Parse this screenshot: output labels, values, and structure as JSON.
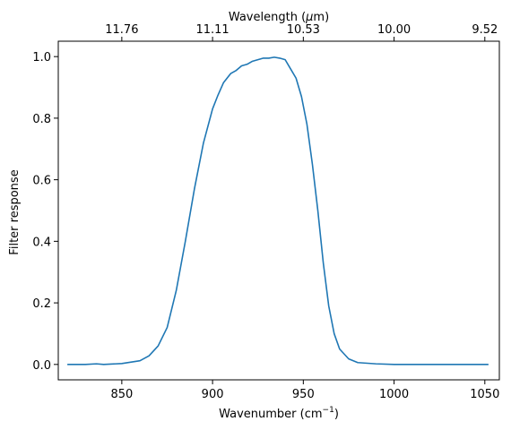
{
  "chart_data": {
    "type": "line",
    "xlabel": "Wavenumber (cm",
    "xlabel_sup": "−1",
    "xlabel_close": ")",
    "ylabel": "Filter response",
    "top_xlabel": "Wavelength (",
    "top_xlabel_mu": "μ",
    "top_xlabel_unit": "m)",
    "xlim": [
      815,
      1058
    ],
    "ylim": [
      -0.05,
      1.05
    ],
    "x_ticks": [
      850,
      900,
      950,
      1000,
      1050
    ],
    "x_tick_labels": [
      "850",
      "900",
      "950",
      "1000",
      "1050"
    ],
    "y_ticks": [
      0.0,
      0.2,
      0.4,
      0.6,
      0.8,
      1.0
    ],
    "y_tick_labels": [
      "0.0",
      "0.2",
      "0.4",
      "0.6",
      "0.8",
      "1.0"
    ],
    "top_ticks": [
      850,
      900,
      950,
      1000,
      1050
    ],
    "top_tick_labels": [
      "11.76",
      "11.11",
      "10.53",
      "10.00",
      "9.52"
    ],
    "grid": false,
    "line_color": "#1f77b4",
    "series": [
      {
        "x": [
          820,
          830,
          836,
          840,
          850,
          860,
          865,
          870,
          875,
          880,
          885,
          890,
          895,
          900,
          903,
          906,
          910,
          913,
          916,
          919,
          922,
          925,
          928,
          931,
          934,
          937,
          940,
          943,
          946,
          949,
          952,
          955,
          958,
          961,
          964,
          967,
          970,
          975,
          980,
          990,
          1000,
          1020,
          1052
        ],
        "y": [
          0.0,
          0.0,
          0.002,
          0.0,
          0.003,
          0.012,
          0.028,
          0.06,
          0.12,
          0.24,
          0.4,
          0.57,
          0.72,
          0.83,
          0.875,
          0.915,
          0.945,
          0.955,
          0.97,
          0.975,
          0.985,
          0.99,
          0.995,
          0.995,
          0.998,
          0.995,
          0.99,
          0.96,
          0.93,
          0.87,
          0.78,
          0.65,
          0.5,
          0.33,
          0.19,
          0.1,
          0.05,
          0.018,
          0.006,
          0.002,
          0.0,
          0.0,
          0.0
        ]
      }
    ]
  }
}
